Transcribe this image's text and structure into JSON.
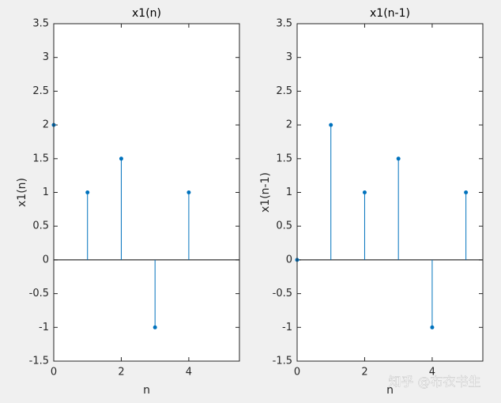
{
  "chart_data": [
    {
      "type": "stem",
      "title": "x1(n)",
      "x_label": "n",
      "y_label": "x1(n)",
      "x": [
        0,
        1,
        2,
        3,
        4
      ],
      "values": [
        2,
        1,
        1.5,
        -1,
        1
      ],
      "color": "#0072bd",
      "xlim": [
        0,
        5.5
      ],
      "ylim": [
        -1.5,
        3.5
      ],
      "xticks": [
        0,
        2,
        4
      ],
      "yticks": [
        -1.5,
        -1,
        -0.5,
        0,
        0.5,
        1,
        1.5,
        2,
        2.5,
        3,
        3.5
      ]
    },
    {
      "type": "stem",
      "title": "x1(n-1)",
      "x_label": "n",
      "y_label": "x1(n-1)",
      "x": [
        0,
        1,
        2,
        3,
        4,
        5
      ],
      "values": [
        0,
        2,
        1,
        1.5,
        -1,
        1
      ],
      "color": "#0072bd",
      "xlim": [
        0,
        5.5
      ],
      "ylim": [
        -1.5,
        3.5
      ],
      "xticks": [
        0,
        2,
        4
      ],
      "yticks": [
        -1.5,
        -1,
        -0.5,
        0,
        0.5,
        1,
        1.5,
        2,
        2.5,
        3,
        3.5
      ]
    }
  ],
  "watermark": "知乎 @布衣书生"
}
